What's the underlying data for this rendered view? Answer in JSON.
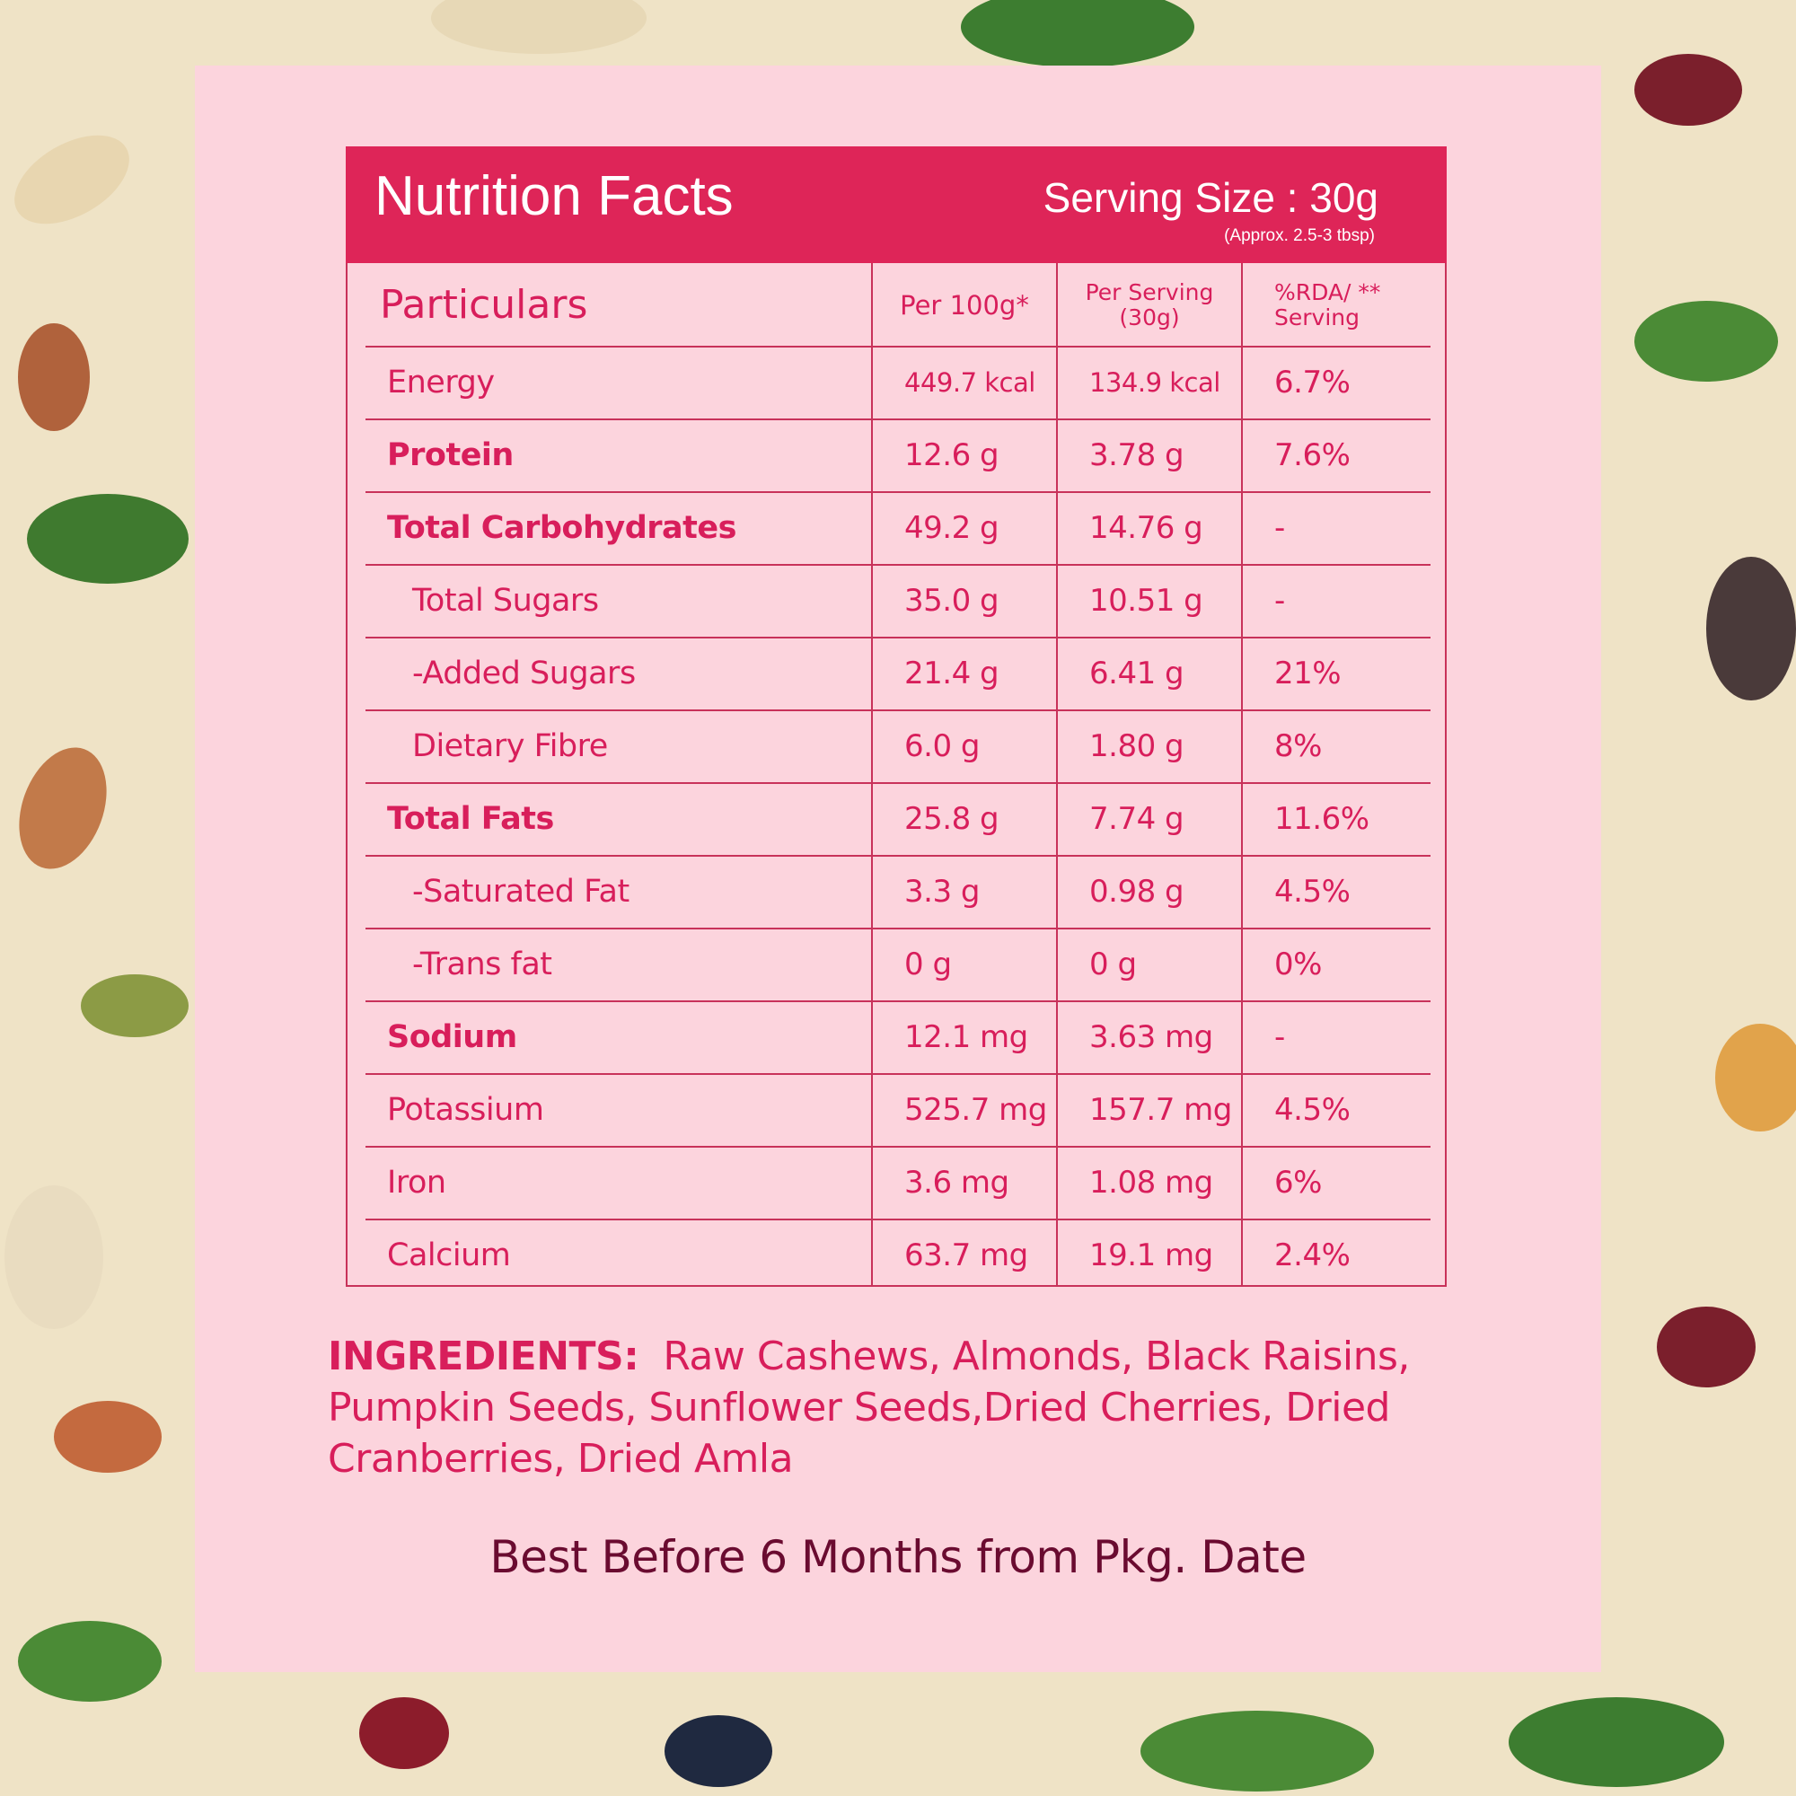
{
  "header": {
    "title": "Nutrition Facts",
    "serving_size": "Serving Size : 30g",
    "serving_note": "(Approx. 2.5-3 tbsp)"
  },
  "table": {
    "columns": [
      [
        "Particulars"
      ],
      [
        "Per 100g*"
      ],
      [
        "Per Serving",
        "(30g)"
      ],
      [
        "%RDA/ **",
        "Serving"
      ]
    ],
    "rows": [
      [
        "Energy",
        "449.7 kcal",
        "134.9 kcal",
        "6.7%"
      ],
      [
        "Protein",
        "12.6 g",
        "3.78 g",
        "7.6%"
      ],
      [
        "Total Carbohydrates",
        "49.2 g",
        "14.76 g",
        "-"
      ],
      [
        "Total Sugars",
        "35.0 g",
        "10.51 g",
        "-"
      ],
      [
        "-Added Sugars",
        "21.4 g",
        "6.41 g",
        "21%"
      ],
      [
        "Dietary Fibre",
        "6.0 g",
        "1.80 g",
        "8%"
      ],
      [
        "Total Fats",
        "25.8 g",
        "7.74 g",
        "11.6%"
      ],
      [
        "-Saturated Fat",
        "3.3 g",
        "0.98 g",
        "4.5%"
      ],
      [
        "-Trans fat",
        "0 g",
        "0 g",
        "0%"
      ],
      [
        "Sodium",
        "12.1 mg",
        "3.63 mg",
        "-"
      ],
      [
        "Potassium",
        "525.7 mg",
        "157.7 mg",
        "4.5%"
      ],
      [
        "Iron",
        "3.6 mg",
        "1.08 mg",
        "6%"
      ],
      [
        "Calcium",
        "63.7 mg",
        "19.1 mg",
        "2.4%"
      ]
    ]
  },
  "ingredients": {
    "label": "INGREDIENTS:",
    "text": "Raw Cashews, Almonds, Black Raisins, Pumpkin Seeds, Sunflower Seeds,Dried Cherries, Dried Cranberries, Dried Amla"
  },
  "footer": "Best Before 6 Months from Pkg. Date"
}
